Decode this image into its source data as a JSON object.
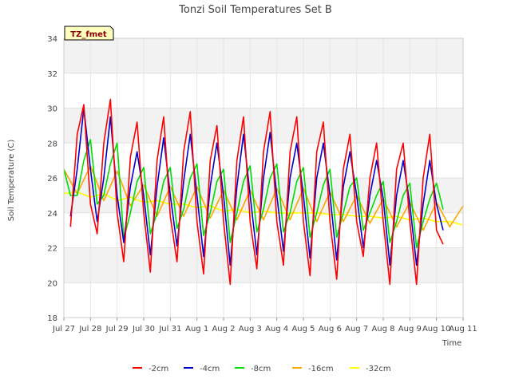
{
  "chart_data": {
    "type": "line",
    "title": "Tonzi Soil Temperatures Set B",
    "xlabel": "Time",
    "ylabel": "Soil Temperature (C)",
    "badge": "TZ_fmet",
    "ylim": [
      18,
      34
    ],
    "yticks": [
      18,
      20,
      22,
      24,
      26,
      28,
      30,
      32,
      34
    ],
    "xlim": [
      0,
      15
    ],
    "xticks": [
      {
        "x": 0,
        "label": "Jul 27"
      },
      {
        "x": 1,
        "label": "Jul 28"
      },
      {
        "x": 2,
        "label": "Jul 29"
      },
      {
        "x": 3,
        "label": "Jul 30"
      },
      {
        "x": 4,
        "label": "Jul 31"
      },
      {
        "x": 5,
        "label": "Aug 1"
      },
      {
        "x": 6,
        "label": "Aug 2"
      },
      {
        "x": 7,
        "label": "Aug 3"
      },
      {
        "x": 8,
        "label": "Aug 4"
      },
      {
        "x": 9,
        "label": "Aug 5"
      },
      {
        "x": 10,
        "label": "Aug 6"
      },
      {
        "x": 11,
        "label": "Aug 7"
      },
      {
        "x": 12,
        "label": "Aug 8"
      },
      {
        "x": 13,
        "label": "Aug 9"
      },
      {
        "x": 14,
        "label": "Aug 10"
      },
      {
        "x": 15,
        "label": "Aug 11"
      }
    ],
    "grid": true,
    "legend_position": "bottom",
    "series": [
      {
        "name": "-2cm",
        "color": "#ff0000",
        "x_start": 0.25,
        "x_step": 0.25,
        "values": [
          23.2,
          28.5,
          30.2,
          24.5,
          22.8,
          28.0,
          30.5,
          24.0,
          21.2,
          27.2,
          29.2,
          24.0,
          20.6,
          27.0,
          29.5,
          23.8,
          21.2,
          27.5,
          29.8,
          23.5,
          20.5,
          27.0,
          29.0,
          23.5,
          19.9,
          27.0,
          29.5,
          23.5,
          20.8,
          27.5,
          29.8,
          23.5,
          21.0,
          27.5,
          29.5,
          23.5,
          20.4,
          27.5,
          29.2,
          23.5,
          20.2,
          26.5,
          28.5,
          23.5,
          21.5,
          26.0,
          28.0,
          23.5,
          19.9,
          26.5,
          28.0,
          23.5,
          19.9,
          26.0,
          28.5,
          23.0,
          22.2
        ]
      },
      {
        "name": "-4cm",
        "color": "#0000cc",
        "x_start": 0.25,
        "x_step": 0.25,
        "values": [
          23.8,
          26.5,
          30.0,
          26.5,
          23.5,
          26.0,
          29.5,
          25.0,
          22.3,
          25.5,
          27.5,
          25.0,
          21.6,
          25.5,
          28.3,
          25.0,
          22.1,
          25.8,
          28.5,
          25.0,
          21.5,
          25.5,
          28.0,
          25.0,
          21.0,
          25.5,
          28.5,
          25.0,
          21.6,
          26.0,
          28.6,
          25.0,
          21.8,
          26.0,
          28.0,
          25.0,
          21.4,
          26.0,
          28.0,
          25.0,
          21.3,
          25.5,
          27.5,
          25.0,
          22.0,
          25.0,
          27.0,
          24.8,
          21.0,
          25.0,
          27.0,
          24.5,
          21.0,
          24.5,
          27.0,
          24.5,
          23.0
        ]
      },
      {
        "name": "-8cm",
        "color": "#00dd00",
        "x_start": 0,
        "x_step": 0.25,
        "values": [
          26.5,
          25.0,
          25.0,
          27.0,
          28.2,
          24.5,
          25.0,
          26.8,
          28.0,
          22.5,
          24.0,
          25.8,
          26.6,
          22.8,
          24.0,
          25.8,
          26.6,
          23.1,
          24.2,
          26.0,
          26.8,
          22.7,
          24.0,
          25.8,
          26.5,
          22.3,
          24.0,
          25.8,
          26.7,
          22.9,
          24.2,
          26.0,
          26.8,
          22.9,
          24.0,
          25.8,
          26.6,
          22.6,
          24.0,
          25.6,
          26.5,
          22.6,
          24.0,
          25.5,
          26.0,
          23.0,
          24.0,
          25.0,
          25.8,
          22.3,
          23.5,
          25.0,
          25.7,
          22.0,
          23.5,
          24.8,
          25.7,
          24.2
        ]
      },
      {
        "name": "-16cm",
        "color": "#ffa500",
        "x_start": 0,
        "x_step": 0.5,
        "values": [
          26.5,
          25.1,
          26.7,
          24.7,
          26.4,
          24.4,
          25.6,
          23.8,
          25.5,
          23.8,
          25.5,
          23.7,
          25.3,
          23.6,
          25.3,
          23.6,
          25.4,
          23.6,
          25.4,
          23.5,
          25.2,
          23.5,
          25.0,
          23.4,
          24.8,
          23.2,
          24.6,
          23.0,
          24.6,
          23.2,
          24.4
        ]
      },
      {
        "name": "-32cm",
        "color": "#ffff00",
        "x_start": 0,
        "x_step": 0.5,
        "values": [
          25.1,
          25.2,
          24.9,
          25.1,
          24.7,
          24.9,
          24.6,
          24.7,
          24.5,
          24.5,
          24.3,
          24.4,
          24.1,
          24.2,
          24.0,
          24.1,
          24.0,
          24.0,
          24.0,
          24.0,
          23.9,
          23.9,
          23.8,
          23.8,
          23.7,
          23.8,
          23.6,
          23.7,
          23.5,
          23.5,
          23.3
        ]
      }
    ]
  }
}
